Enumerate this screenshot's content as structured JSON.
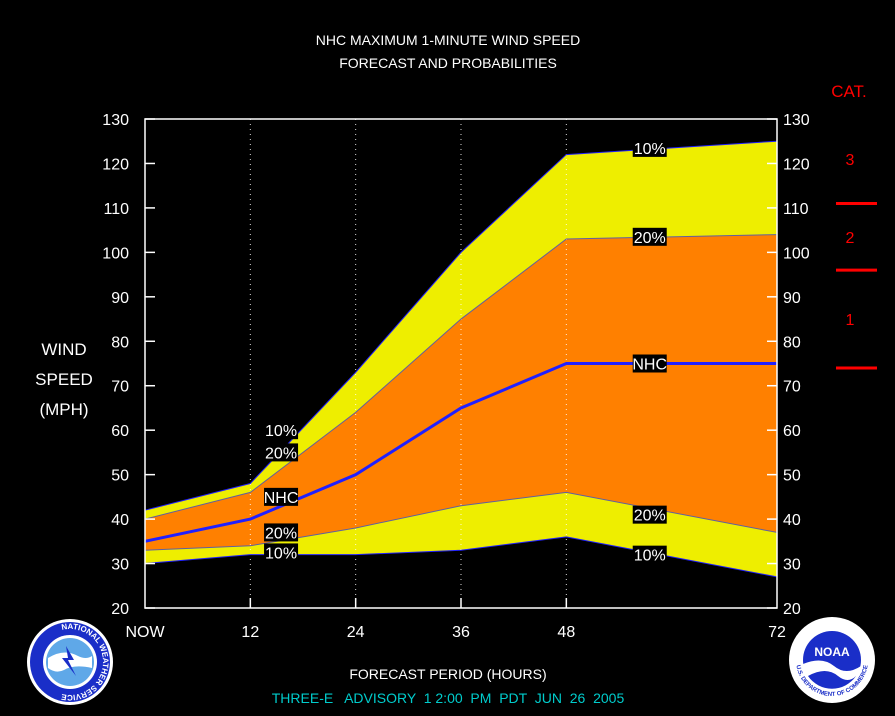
{
  "chart_data": {
    "type": "area",
    "title_lines": [
      "NHC MAXIMUM 1-MINUTE WIND SPEED",
      "FORECAST AND PROBABILITIES"
    ],
    "ylabel_lines": [
      "WIND",
      "SPEED",
      "(MPH)"
    ],
    "xlabel": "FORECAST PERIOD (HOURS)",
    "footer": "THREE-E   ADVISORY  1 2:00  PM  PDT  JUN  26  2005",
    "x_ticks": [
      {
        "x": 0,
        "label": "NOW"
      },
      {
        "x": 12,
        "label": "12"
      },
      {
        "x": 24,
        "label": "24"
      },
      {
        "x": 36,
        "label": "36"
      },
      {
        "x": 48,
        "label": "48"
      },
      {
        "x": 72,
        "label": "72"
      }
    ],
    "y_ticks": [
      20,
      30,
      40,
      50,
      60,
      70,
      80,
      90,
      100,
      110,
      120,
      130
    ],
    "xlim": [
      0,
      72
    ],
    "ylim": [
      20,
      130
    ],
    "grid": "dotted vertical at 12, 24, 36, 48",
    "x": [
      0,
      12,
      24,
      36,
      48,
      72
    ],
    "series": {
      "upper_10": [
        42,
        48,
        73,
        100,
        122,
        125
      ],
      "upper_20": [
        40,
        46,
        64,
        85,
        103,
        104
      ],
      "nhc": [
        35,
        40,
        50,
        65,
        75,
        75
      ],
      "lower_20": [
        33,
        34,
        38,
        43,
        46,
        37
      ],
      "lower_10": [
        30,
        32,
        32,
        33,
        36,
        27
      ]
    },
    "band_labels": [
      {
        "x": 15.5,
        "y": 60,
        "text": "10%"
      },
      {
        "x": 15.5,
        "y": 55,
        "text": "20%"
      },
      {
        "x": 15.5,
        "y": 45,
        "text": "NHC"
      },
      {
        "x": 15.5,
        "y": 37,
        "text": "20%"
      },
      {
        "x": 15.5,
        "y": 32.5,
        "text": "10%"
      },
      {
        "x": 57.5,
        "y": 123.5,
        "text": "10%"
      },
      {
        "x": 57.5,
        "y": 103.5,
        "text": "20%"
      },
      {
        "x": 57.5,
        "y": 75,
        "text": "NHC"
      },
      {
        "x": 57.5,
        "y": 41,
        "text": "20%"
      },
      {
        "x": 57.5,
        "y": 32,
        "text": "10%"
      }
    ],
    "category": {
      "header": "CAT.",
      "thresholds": [
        74,
        96,
        111
      ],
      "labels": [
        {
          "text": "1",
          "y": 85
        },
        {
          "text": "2",
          "y": 103.5
        },
        {
          "text": "3",
          "y": 121
        }
      ]
    },
    "colors": {
      "outer_band": "#eeee00",
      "inner_band": "#ff8000",
      "nhc_line": "#2020ff",
      "category": "#ff0000",
      "footer": "#00cccc"
    }
  },
  "logos": {
    "nws": "NATIONAL WEATHER SERVICE",
    "noaa": "NOAA",
    "doc": "U.S. DEPARTMENT OF COMMERCE"
  }
}
